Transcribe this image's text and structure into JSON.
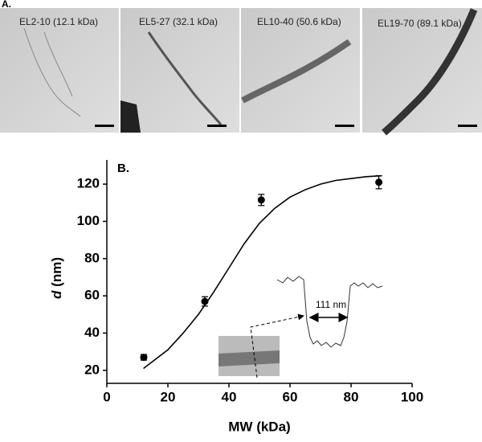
{
  "panel_a": {
    "label": "A.",
    "images": [
      {
        "label": "EL2-10 (12.1 kDa)"
      },
      {
        "label": "EL5-27 (32.1 kDa)"
      },
      {
        "label": "EL10-40 (50.6 kDa)"
      },
      {
        "label": "EL19-70 (89.1 kDa)"
      }
    ]
  },
  "chart_data": {
    "type": "scatter",
    "panel_label": "B.",
    "x_label": "MW (kDa)",
    "y_label_symbol": "d",
    "y_label_unit": "(nm)",
    "x": [
      12.1,
      32.1,
      50.6,
      89.1
    ],
    "values": [
      27,
      57,
      111.5,
      121
    ],
    "errors": [
      1.5,
      2.5,
      3,
      3.5
    ],
    "color": "#000000",
    "fit_line": {
      "x": [
        12,
        16,
        20,
        25,
        30,
        35,
        40,
        45,
        50,
        55,
        60,
        65,
        70,
        75,
        80,
        85,
        90
      ],
      "values": [
        21,
        26,
        31,
        40,
        50,
        62,
        75,
        88,
        99,
        107,
        113,
        117,
        120,
        122,
        123,
        124,
        124.5
      ]
    },
    "annotation": "111 nm",
    "xlim": [
      0,
      100
    ],
    "xticks": [
      0,
      20,
      40,
      60,
      80,
      100
    ],
    "ylim": [
      13,
      133
    ],
    "yticks": [
      20,
      40,
      60,
      80,
      100,
      120
    ]
  }
}
